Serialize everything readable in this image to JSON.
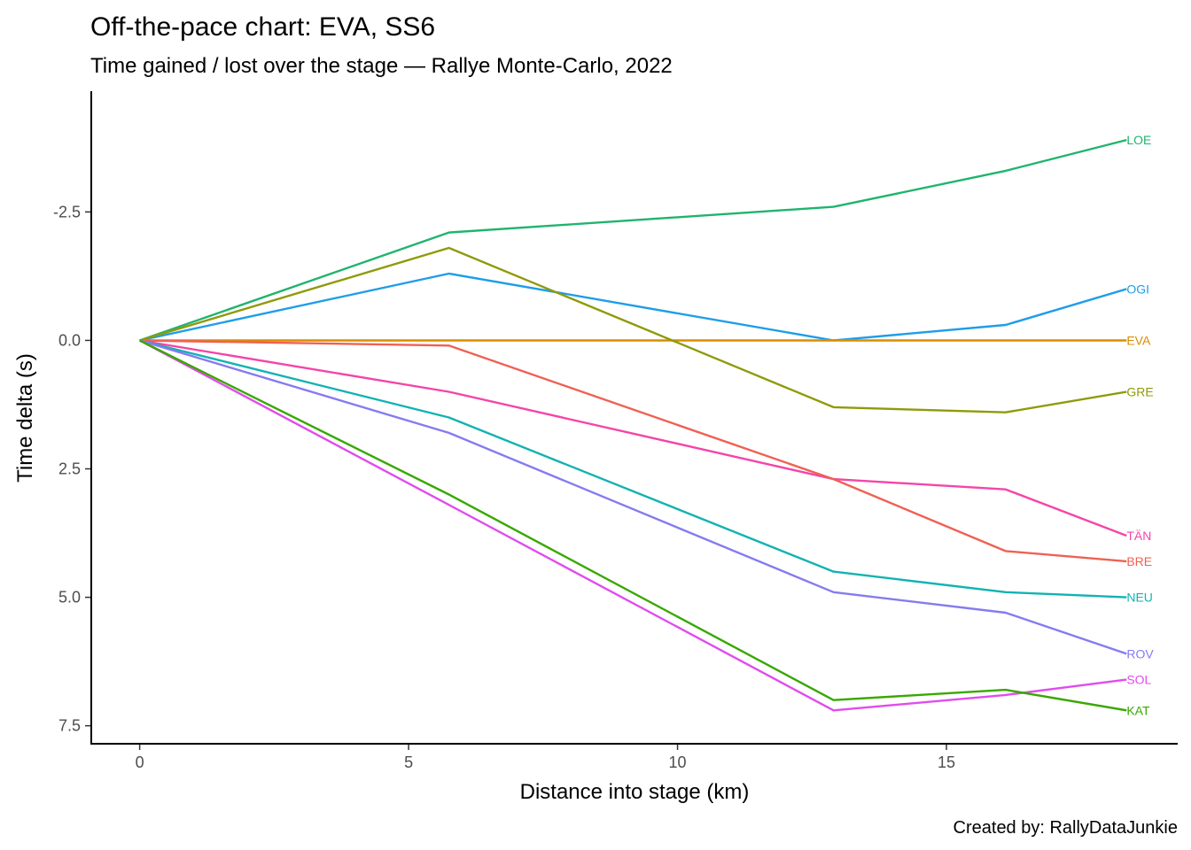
{
  "chart_data": {
    "type": "line",
    "title": "Off-the-pace chart: EVA, SS6",
    "subtitle": "Time gained / lost over the stage — Rallye Monte-Carlo, 2022",
    "xlabel": "Distance into stage (km)",
    "ylabel": "Time delta (s)",
    "caption": "Created by: RallyDataJunkie",
    "xlim": [
      -0.9,
      19.3
    ],
    "ylim": [
      -4.85,
      7.85
    ],
    "y_reversed": true,
    "x_ticks": [
      0,
      5,
      10,
      15
    ],
    "x_tick_labels": [
      "0",
      "5",
      "10",
      "15"
    ],
    "y_ticks": [
      -2.5,
      0,
      2.5,
      5,
      7.5
    ],
    "y_tick_labels": [
      "-2.5",
      "0.0",
      "2.5",
      "5.0",
      "7.5"
    ],
    "grid": false,
    "legend": "none (direct labels at line ends)",
    "x": [
      0,
      5.75,
      12.9,
      16.1,
      18.35
    ],
    "series": [
      {
        "name": "LOE",
        "color": "#1FB46E",
        "values": [
          0,
          -2.1,
          -2.6,
          -3.3,
          -3.9
        ]
      },
      {
        "name": "OGI",
        "color": "#1F9DE8",
        "values": [
          0,
          -1.3,
          0.0,
          -0.3,
          -1.0
        ]
      },
      {
        "name": "EVA",
        "color": "#D98E00",
        "values": [
          0,
          0,
          0,
          0,
          0
        ]
      },
      {
        "name": "GRE",
        "color": "#8F9A0A",
        "values": [
          0,
          -1.8,
          1.3,
          1.4,
          1.0
        ]
      },
      {
        "name": "TÄN",
        "color": "#F445A8",
        "values": [
          0,
          1.0,
          2.7,
          2.9,
          3.8
        ]
      },
      {
        "name": "BRE",
        "color": "#EF6154",
        "values": [
          0,
          0.1,
          2.7,
          4.1,
          4.3
        ]
      },
      {
        "name": "NEU",
        "color": "#13B2B2",
        "values": [
          0,
          1.5,
          4.5,
          4.9,
          5.0
        ]
      },
      {
        "name": "ROV",
        "color": "#857BF0",
        "values": [
          0,
          1.8,
          4.9,
          5.3,
          6.1
        ]
      },
      {
        "name": "SOL",
        "color": "#E04CED",
        "values": [
          0,
          3.2,
          7.2,
          6.9,
          6.6
        ]
      },
      {
        "name": "KAT",
        "color": "#38A800",
        "values": [
          0,
          3.0,
          7.0,
          6.8,
          7.2
        ]
      }
    ]
  }
}
